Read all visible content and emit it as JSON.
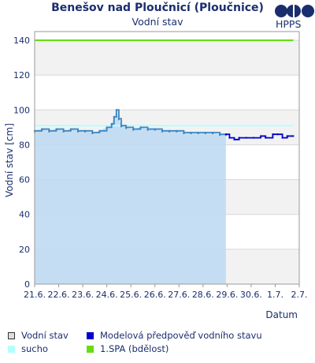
{
  "title": "Benešov nad Ploučnicí (Ploučnice)",
  "subtitle": "Vodní stav",
  "logo_text": "HPPS",
  "colors": {
    "navy": "#1a2e6e",
    "observed_line": "#3a86c4",
    "observed_fill": "#c0daf2",
    "forecast": "#0000cc",
    "sucho": "#b3ffff",
    "spa1": "#66dd11"
  },
  "legend": [
    {
      "label": "Vodní stav",
      "swatch": "box",
      "icon": "observed-swatch"
    },
    {
      "label": "Modelová předpověď vodního stavu",
      "swatch": "forecast",
      "icon": "forecast-swatch"
    },
    {
      "label": "sucho",
      "swatch": "sucho",
      "icon": "sucho-swatch"
    },
    {
      "label": "1.SPA (bdělost)",
      "swatch": "spa1",
      "icon": "spa1-swatch"
    }
  ],
  "chart_data": {
    "type": "line",
    "ylabel": "Vodní stav [cm]",
    "xlabel": "Datum",
    "ylim": [
      0,
      145
    ],
    "yticks": [
      0,
      20,
      40,
      60,
      80,
      100,
      120,
      140
    ],
    "xticks": [
      "21.6.",
      "22.6.",
      "23.6.",
      "24.6.",
      "25.6.",
      "26.6.",
      "27.6.",
      "28.6.",
      "29.6.",
      "30.6.",
      "1.7.",
      "2.7."
    ],
    "x_range_days": [
      0,
      11
    ],
    "grid": true,
    "thresholds": [
      {
        "name": "1.SPA (bdělost)",
        "value": 140
      },
      {
        "name": "sucho",
        "value": 91
      }
    ],
    "series": [
      {
        "name": "Vodní stav",
        "points": [
          [
            0.0,
            88
          ],
          [
            0.3,
            89
          ],
          [
            0.6,
            88
          ],
          [
            0.9,
            89
          ],
          [
            1.2,
            88
          ],
          [
            1.5,
            89
          ],
          [
            1.8,
            88
          ],
          [
            2.1,
            88
          ],
          [
            2.4,
            87
          ],
          [
            2.7,
            88
          ],
          [
            3.0,
            90
          ],
          [
            3.2,
            92
          ],
          [
            3.3,
            96
          ],
          [
            3.4,
            100
          ],
          [
            3.5,
            95
          ],
          [
            3.6,
            91
          ],
          [
            3.8,
            90
          ],
          [
            4.1,
            89
          ],
          [
            4.4,
            90
          ],
          [
            4.7,
            89
          ],
          [
            5.0,
            89
          ],
          [
            5.3,
            88
          ],
          [
            5.6,
            88
          ],
          [
            5.9,
            88
          ],
          [
            6.2,
            87
          ],
          [
            6.5,
            87
          ],
          [
            6.8,
            87
          ],
          [
            7.1,
            87
          ],
          [
            7.4,
            87
          ],
          [
            7.7,
            86
          ],
          [
            7.95,
            86
          ]
        ]
      },
      {
        "name": "Modelová předpověď vodního stavu",
        "points": [
          [
            7.95,
            86
          ],
          [
            8.1,
            84
          ],
          [
            8.3,
            83
          ],
          [
            8.5,
            84
          ],
          [
            8.8,
            84
          ],
          [
            9.1,
            84
          ],
          [
            9.4,
            85
          ],
          [
            9.6,
            84
          ],
          [
            9.9,
            86
          ],
          [
            10.1,
            86
          ],
          [
            10.3,
            84
          ],
          [
            10.5,
            85
          ],
          [
            10.75,
            85
          ]
        ]
      }
    ]
  }
}
